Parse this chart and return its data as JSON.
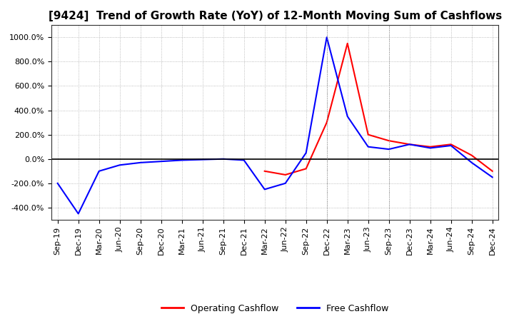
{
  "title": "[9424]  Trend of Growth Rate (YoY) of 12-Month Moving Sum of Cashflows",
  "title_fontsize": 11,
  "ylim": [
    -500,
    1100
  ],
  "yticks": [
    -400,
    -200,
    0,
    200,
    400,
    600,
    800,
    1000
  ],
  "ytick_labels": [
    "-400.0%",
    "-200.0%",
    "0.0%",
    "200.0%",
    "400.0%",
    "600.0%",
    "800.0%",
    "1000.0%"
  ],
  "xlabel_fontsize": 8,
  "ylabel_fontsize": 8,
  "background_color": "#ffffff",
  "plot_bg_color": "#ffffff",
  "grid_color": "#aaaaaa",
  "operating_color": "#ff0000",
  "free_color": "#0000ff",
  "legend_labels": [
    "Operating Cashflow",
    "Free Cashflow"
  ],
  "x_dates": [
    "Sep-19",
    "Dec-19",
    "Mar-20",
    "Jun-20",
    "Sep-20",
    "Dec-20",
    "Mar-21",
    "Jun-21",
    "Sep-21",
    "Dec-21",
    "Mar-22",
    "Jun-22",
    "Sep-22",
    "Dec-22",
    "Mar-23",
    "Jun-23",
    "Sep-23",
    "Dec-23",
    "Mar-24",
    "Jun-24",
    "Sep-24",
    "Dec-24"
  ],
  "operating_cashflow_yoy": [
    null,
    null,
    null,
    null,
    null,
    null,
    null,
    null,
    null,
    null,
    -100,
    -130,
    -80,
    300,
    950,
    200,
    150,
    120,
    100,
    120,
    30,
    -100
  ],
  "free_cashflow_yoy": [
    -200,
    -450,
    -100,
    -50,
    -30,
    -20,
    -10,
    -5,
    0,
    -10,
    -250,
    -200,
    50,
    1000,
    350,
    100,
    80,
    120,
    90,
    110,
    -30,
    -150
  ],
  "dotted_vlines": [
    13,
    16
  ]
}
